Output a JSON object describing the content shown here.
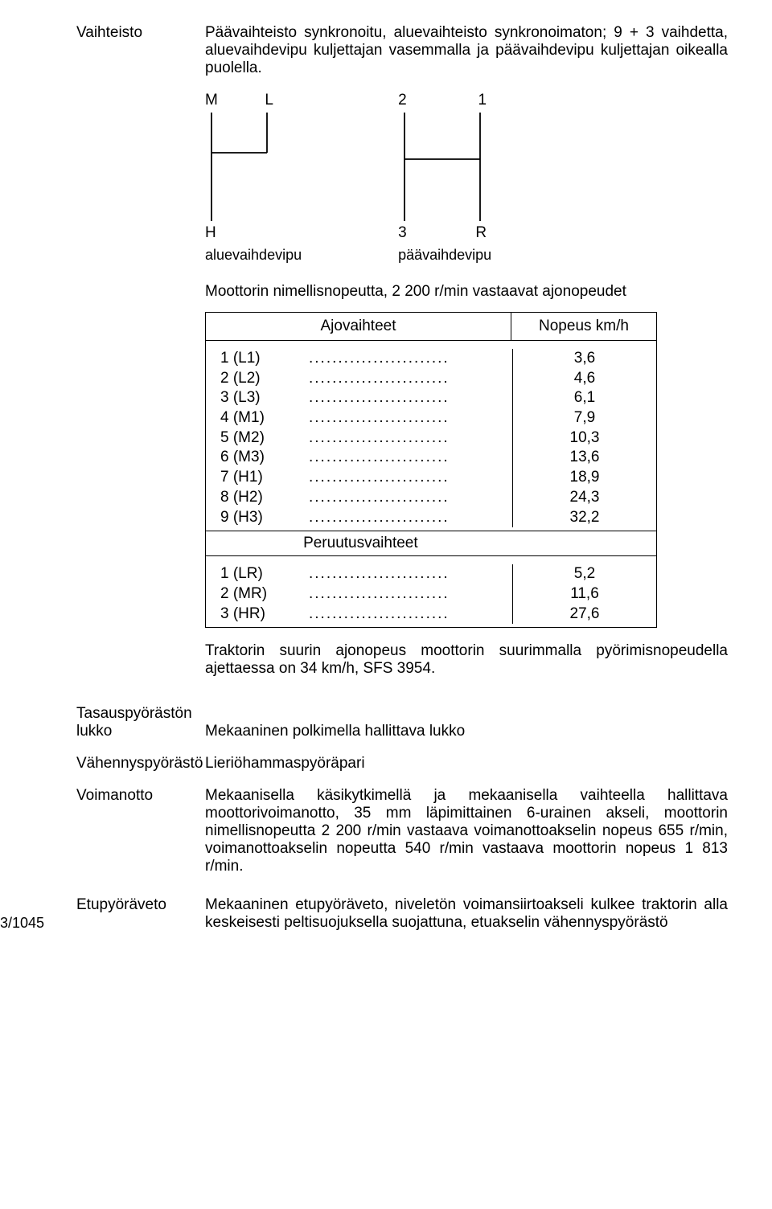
{
  "sections": {
    "vaihteisto": {
      "label": "Vaihteisto",
      "desc": "Päävaihteisto synkronoitu, aluevaihteisto synkronoimaton; 9 + 3 vaihdetta, aluevaihdevipu kuljettajan vasemmalla ja päävaihdevipu kuljettajan oikealla puolella."
    },
    "lever1": {
      "top_left": "M",
      "top_right": "L",
      "bottom_left": "H",
      "name": "aluevaihdevipu"
    },
    "lever2": {
      "top_left": "2",
      "top_right": "1",
      "bottom_left": "3",
      "bottom_right": "R",
      "name": "päävaihdevipu"
    },
    "speed_intro": "Moottorin nimellisnopeutta, 2 200 r/min vastaavat ajonopeudet",
    "speed_table": {
      "header_left": "Ajovaihteet",
      "header_right": "Nopeus km/h",
      "forward": [
        {
          "num": "1",
          "gear": "(L1)",
          "speed": "3,6"
        },
        {
          "num": "2",
          "gear": "(L2)",
          "speed": "4,6"
        },
        {
          "num": "3",
          "gear": "(L3)",
          "speed": "6,1"
        },
        {
          "num": "4",
          "gear": "(M1)",
          "speed": "7,9"
        },
        {
          "num": "5",
          "gear": "(M2)",
          "speed": "10,3"
        },
        {
          "num": "6",
          "gear": "(M3)",
          "speed": "13,6"
        },
        {
          "num": "7",
          "gear": "(H1)",
          "speed": "18,9"
        },
        {
          "num": "8",
          "gear": "(H2)",
          "speed": "24,3"
        },
        {
          "num": "9",
          "gear": "(H3)",
          "speed": "32,2"
        }
      ],
      "mid_label": "Peruutusvaihteet",
      "reverse": [
        {
          "num": "1",
          "gear": "(LR)",
          "speed": "5,2"
        },
        {
          "num": "2",
          "gear": "(MR)",
          "speed": "11,6"
        },
        {
          "num": "3",
          "gear": "(HR)",
          "speed": "27,6"
        }
      ]
    },
    "max_speed": "Traktorin suurin ajonopeus moottorin suurimmalla pyörimisnopeudella ajettaessa on 34 km/h, SFS 3954.",
    "tasaus": {
      "label1": "Tasauspyörästön",
      "label2": "lukko",
      "desc": "Mekaaninen polkimella hallittava lukko"
    },
    "vahennys": {
      "label": "Vähennyspyörästö",
      "desc": "Lieriöhammaspyöräpari"
    },
    "voimanotto": {
      "label": "Voimanotto",
      "desc": "Mekaanisella käsikytkimellä ja mekaanisella vaihteella hallittava moottorivoimanotto, 35 mm läpimittainen 6-urainen akseli, moottorin nimellisnopeutta 2 200 r/min vastaava voimanottoakselin nopeus 655 r/min, voimanottoakselin nopeutta 540 r/min vastaava moottorin nopeus 1 813 r/min."
    },
    "etupyora": {
      "label": "Etupyöräveto",
      "desc": "Mekaaninen etupyöräveto, niveletön voimansiirtoakseli kulkee traktorin alla keskeisesti peltisuojuksella suojattuna, etuakselin vähennyspyörästö"
    }
  },
  "page_ref": "3/1045",
  "diagram_style": {
    "stroke": "#000000",
    "stroke_width": 1.8,
    "lever1_width": 85,
    "lever2_width": 110,
    "height": 135
  }
}
